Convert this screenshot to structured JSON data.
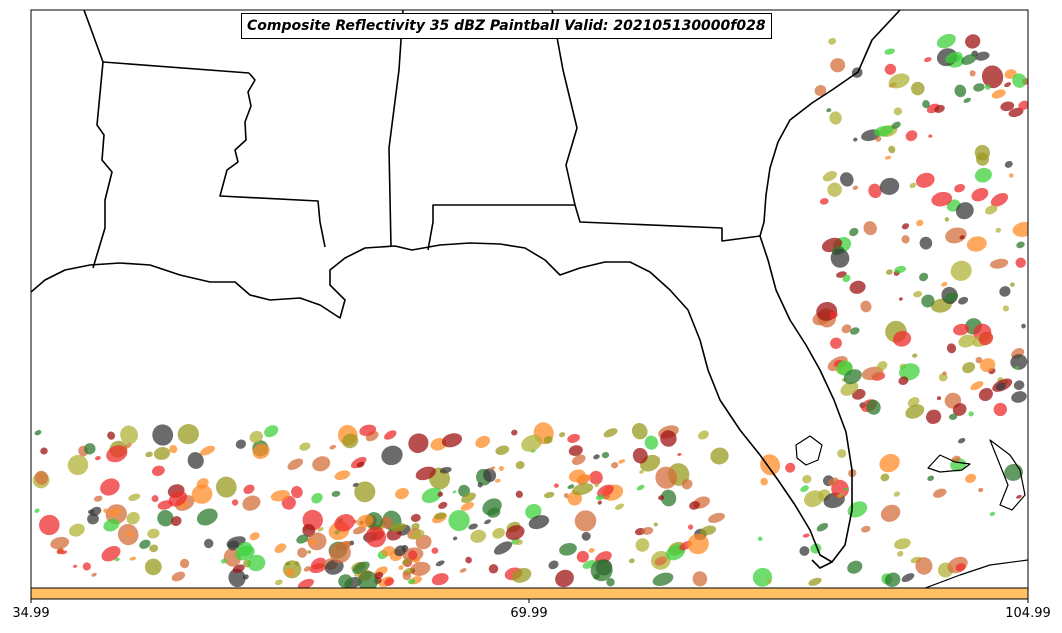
{
  "title": "Composite Reflectivity 35 dBZ Paintball Valid: 202105130000f028",
  "colorbar": {
    "ticks": [
      "34.99",
      "69.99",
      "104.99"
    ],
    "color": "#ffc164"
  },
  "map": {
    "region": "Southeastern United States and Gulf of Mexico",
    "land_color": "#ffffff",
    "border_color": "#000000"
  },
  "paintball_colors": [
    "#ef2e2e",
    "#3dd23d",
    "#ff8c28",
    "#9a9a20",
    "#3a3a3a",
    "#a01414",
    "#2e7a2e",
    "#d46f3b",
    "#b2b237"
  ]
}
